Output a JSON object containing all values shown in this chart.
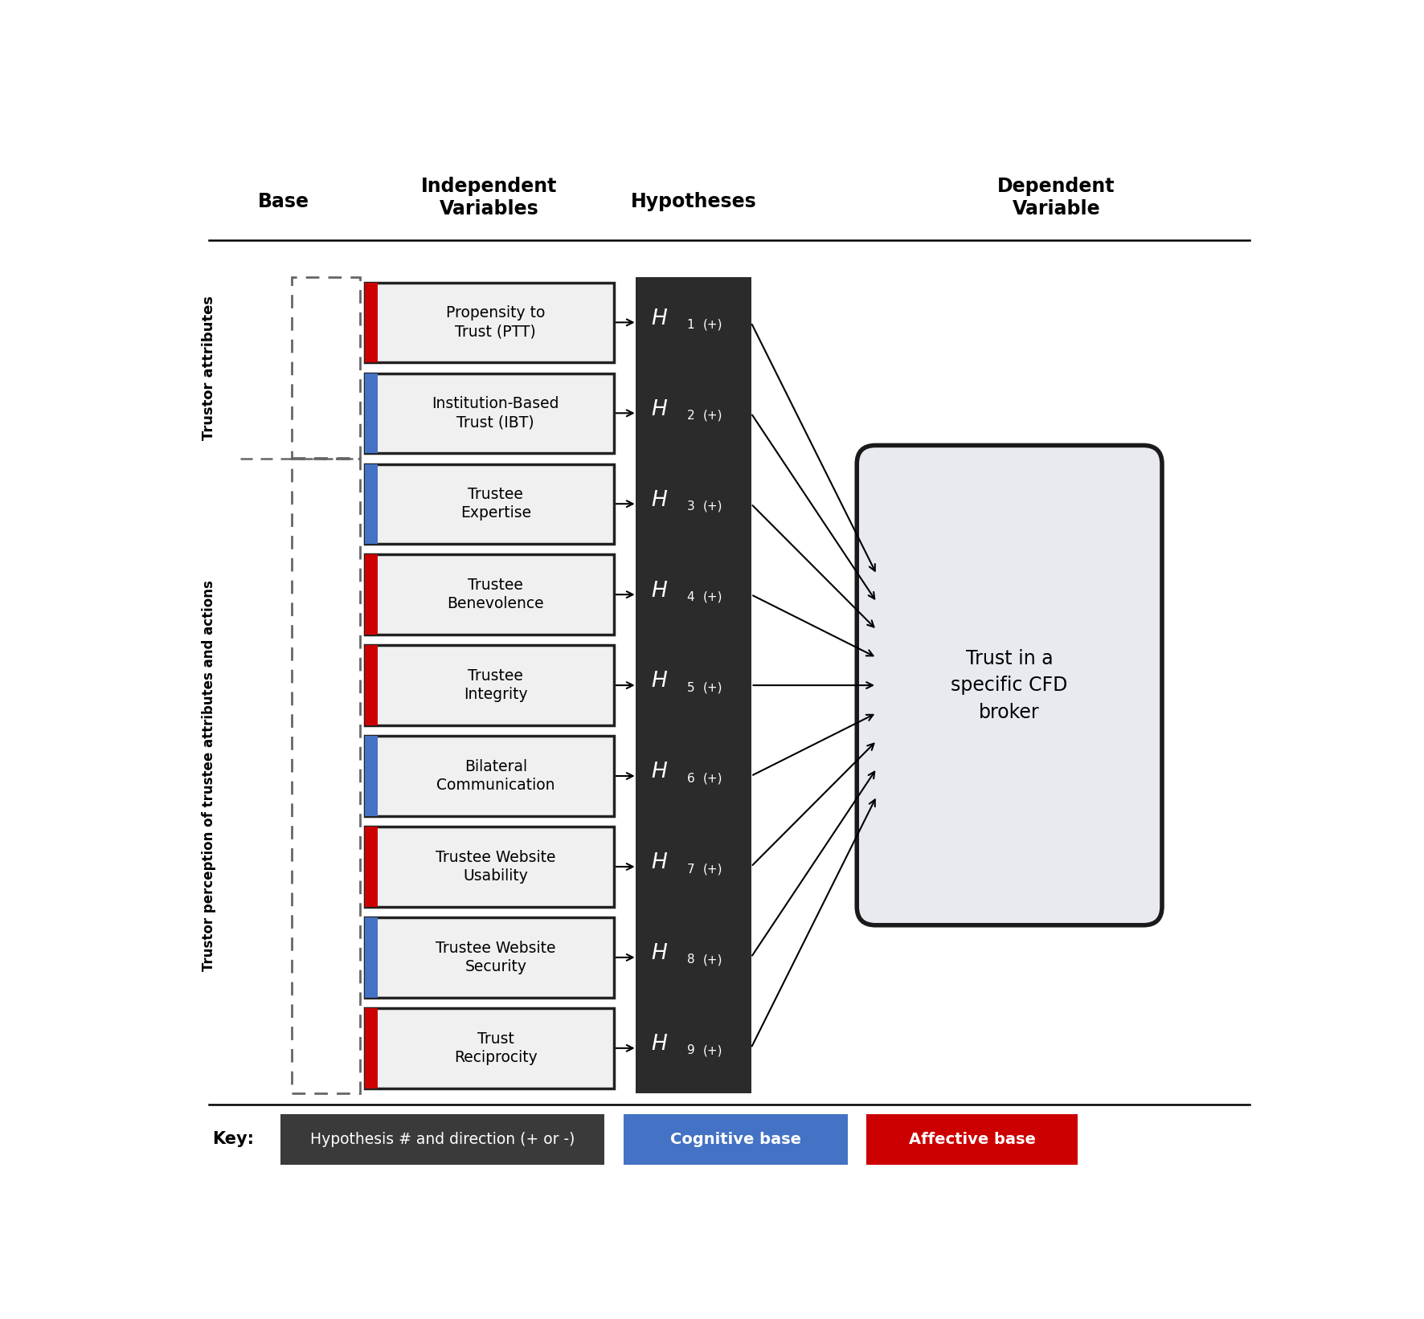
{
  "title_base": "Base",
  "title_iv": "Independent\nVariables",
  "title_hyp": "Hypotheses",
  "title_dv": "Dependent\nVariable",
  "iv_labels": [
    "Propensity to\nTrust (PTT)",
    "Institution-Based\nTrust (IBT)",
    "Trustee\nExpertise",
    "Trustee\nBenevolence",
    "Trustee\nIntegrity",
    "Bilateral\nCommunication",
    "Trustee Website\nUsability",
    "Trustee Website\nSecurity",
    "Trust\nReciprocity"
  ],
  "hyp_nums": [
    "1",
    "2",
    "3",
    "4",
    "5",
    "6",
    "7",
    "8",
    "9"
  ],
  "hyp_subs": [
    "(+)",
    "(+)",
    "(+)",
    "(+)",
    "(+)",
    "(+)",
    "(+)",
    "(+)",
    "(+)"
  ],
  "dv_label": "Trust in a\nspecific CFD\nbroker",
  "base_colors": [
    "#CC0000",
    "#4472C4",
    "#4472C4",
    "#CC0000",
    "#CC0000",
    "#4472C4",
    "#CC0000",
    "#4472C4",
    "#CC0000"
  ],
  "trustor_attr_label": "Trustor attributes",
  "trustor_perc_label": "Trustor perception of trustee attributes and actions",
  "key_hyp_color": "#3A3A3A",
  "key_cog_color": "#4472C4",
  "key_aff_color": "#CC0000",
  "key_hyp_text": "Hypothesis # and direction (+ or -)",
  "key_cog_text": "Cognitive base",
  "key_aff_text": "Affective base",
  "bg_color": "#FFFFFF",
  "iv_box_fill": "#F0F0F0",
  "dark_box_color": "#2B2B2B",
  "dv_box_fill": "#E8EAF0"
}
